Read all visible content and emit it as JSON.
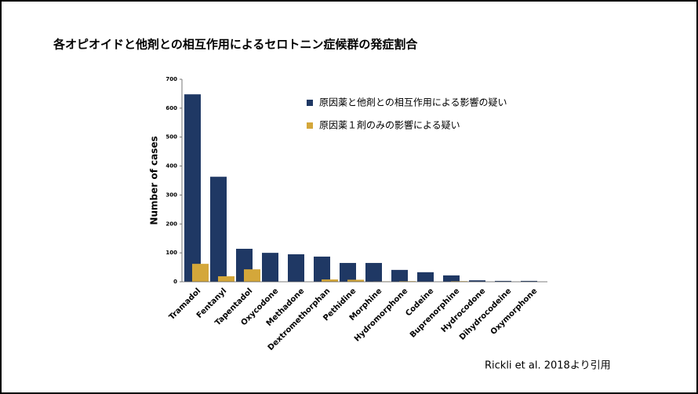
{
  "chart_data": {
    "type": "bar",
    "title": "各オピオイドと他剤との相互作用によるセロトニン症候群の発症割合",
    "y_label": "Number of cases",
    "source": "Rickli et al. 2018より引用",
    "categories": [
      "Tramadol",
      "Fentanyl",
      "Tapentadol",
      "Oxycodone",
      "Methadone",
      "Dextromethorphan",
      "Pethidine",
      "Morphine",
      "Hydromorphone",
      "Codeine",
      "Buprenorphine",
      "Hydrocodone",
      "Dihydrocodeine",
      "Oxymorphone"
    ],
    "series": [
      {
        "name": "原因薬と他剤との相互作用による影響の疑い",
        "color": "#1f3864",
        "values": [
          648,
          363,
          114,
          100,
          95,
          87,
          65,
          65,
          41,
          33,
          22,
          5,
          3,
          3
        ]
      },
      {
        "name": "原因薬１剤のみの影響による疑い",
        "color": "#d4a73a",
        "values": [
          62,
          19,
          43,
          0,
          0,
          8,
          7,
          1,
          2,
          0,
          2,
          0,
          0,
          0
        ]
      }
    ],
    "ylim": [
      0,
      700
    ],
    "yticks": [
      0,
      100,
      200,
      300,
      400,
      500,
      600,
      700
    ]
  }
}
